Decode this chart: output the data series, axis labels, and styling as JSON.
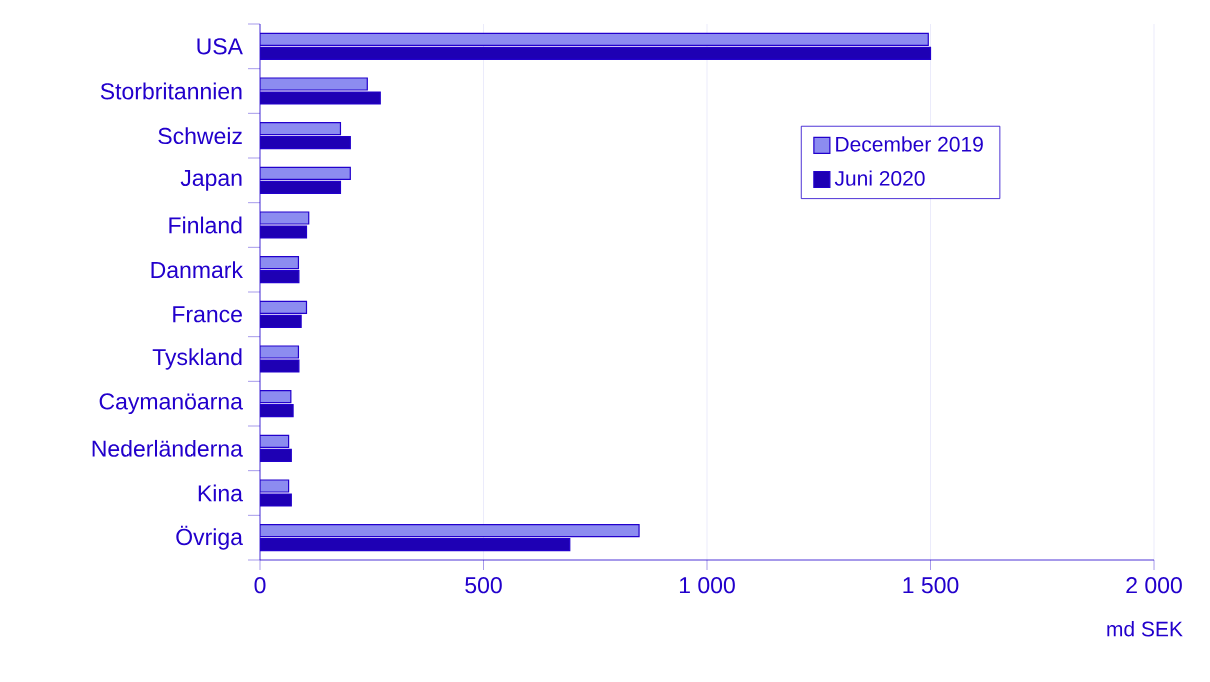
{
  "chart_data": {
    "type": "bar",
    "orientation": "horizontal",
    "xlabel": "md SEK",
    "categories": [
      "USA",
      "Storbritannien",
      "Schweiz",
      "Japan",
      "Finland",
      "Danmark",
      "France",
      "Tyskland",
      "Caymanöarna",
      "Nederländerna",
      "Kina",
      "Övriga"
    ],
    "series": [
      {
        "name": "December 2019",
        "color": "#8c8cf0",
        "values": [
          1495,
          240,
          180,
          202,
          109,
          86,
          104,
          86,
          69,
          64,
          64,
          848
        ]
      },
      {
        "name": "Juni 2020",
        "color": "#1e00b4",
        "values": [
          1500,
          269,
          202,
          180,
          104,
          87,
          92,
          87,
          74,
          70,
          70,
          693
        ]
      }
    ],
    "xlim": [
      0,
      2000
    ],
    "xticks": [
      0,
      500,
      {
        "value": 1000,
        "label": "1 000"
      },
      {
        "value": 1500,
        "label": "1 500"
      },
      {
        "value": 2000,
        "label": "2 000"
      }
    ],
    "grid": "x",
    "legend": "top right"
  }
}
